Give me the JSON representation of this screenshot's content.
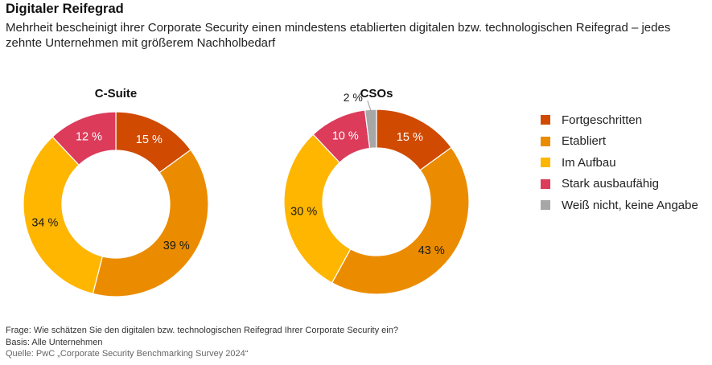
{
  "header": {
    "title": "Digitaler Reifegrad",
    "subtitle": "Mehrheit bescheinigt ihrer Corporate Security einen mindestens etablierten digitalen bzw. technologischen Reifegrad – jedes zehnte Unternehmen mit größerem Nachholbedarf"
  },
  "legend": [
    {
      "label": "Fortgeschritten",
      "color": "#d04a02"
    },
    {
      "label": "Etabliert",
      "color": "#eb8c00"
    },
    {
      "label": "Im Aufbau",
      "color": "#ffb600"
    },
    {
      "label": "Stark ausbaufähig",
      "color": "#e0301e"
    },
    {
      "label": "Weiß nicht, keine Angabe",
      "color": "#a7a7a7"
    }
  ],
  "chart_data": [
    {
      "type": "pie",
      "title": "C-Suite",
      "donut": true,
      "labels": [
        "Fortgeschritten",
        "Etabliert",
        "Im Aufbau",
        "Stark ausbaufähig"
      ],
      "values": [
        15,
        39,
        34,
        12
      ],
      "value_labels": [
        "15 %",
        "39 %",
        "34 %",
        "12 %"
      ],
      "colors": [
        "#d04a02",
        "#eb8c00",
        "#ffb600",
        "#dc3b5a"
      ]
    },
    {
      "type": "pie",
      "title": "CSOs",
      "donut": true,
      "labels": [
        "Fortgeschritten",
        "Etabliert",
        "Im Aufbau",
        "Stark ausbaufähig",
        "Weiß nicht, keine Angabe"
      ],
      "values": [
        15,
        43,
        30,
        10,
        2
      ],
      "value_labels": [
        "15 %",
        "43 %",
        "30 %",
        "10 %",
        "2 %"
      ],
      "colors": [
        "#d04a02",
        "#eb8c00",
        "#ffb600",
        "#dc3b5a",
        "#a7a7a7"
      ]
    }
  ],
  "footer": {
    "question": "Frage: Wie schätzen Sie den digitalen bzw. technologischen Reifegrad Ihrer Corporate Security ein?",
    "basis": "Basis: Alle Unternehmen",
    "source": "Quelle: PwC „Corporate Security Benchmarking Survey 2024“"
  }
}
